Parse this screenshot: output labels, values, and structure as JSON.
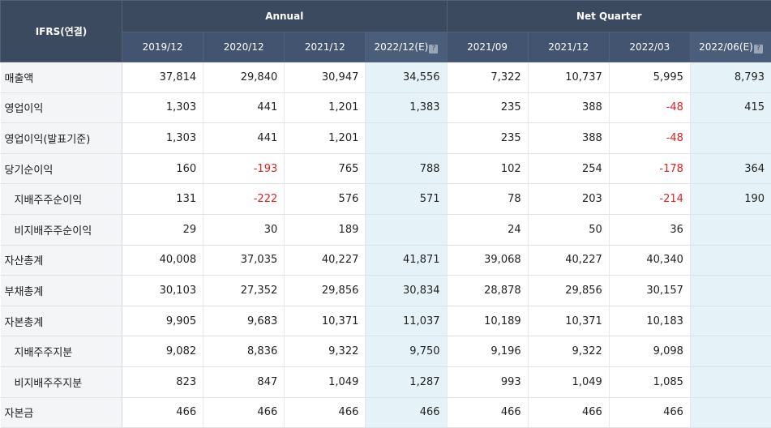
{
  "header": {
    "corner": "IFRS(연결)",
    "annual_group": "Annual",
    "quarter_group": "Net Quarter",
    "periods": [
      "2019/12",
      "2020/12",
      "2021/12",
      "2022/12(E)",
      "2021/09",
      "2021/12",
      "2022/03",
      "2022/06(E)"
    ],
    "estimate_help_icon": "question-mark-icon"
  },
  "rows": [
    {
      "label": "매출액",
      "values": [
        "37,814",
        "29,840",
        "30,947",
        "34,556",
        "7,322",
        "10,737",
        "5,995",
        "8,793"
      ]
    },
    {
      "label": "영업이익",
      "values": [
        "1,303",
        "441",
        "1,201",
        "1,383",
        "235",
        "388",
        "-48",
        "415"
      ]
    },
    {
      "label": "영업이익(발표기준)",
      "values": [
        "1,303",
        "441",
        "1,201",
        "",
        "235",
        "388",
        "-48",
        ""
      ]
    },
    {
      "label": "당기순이익",
      "values": [
        "160",
        "-193",
        "765",
        "788",
        "102",
        "254",
        "-178",
        "364"
      ]
    },
    {
      "label": "지배주주순이익",
      "values": [
        "131",
        "-222",
        "576",
        "571",
        "78",
        "203",
        "-214",
        "190"
      ]
    },
    {
      "label": "비지배주주순이익",
      "values": [
        "29",
        "30",
        "189",
        "",
        "24",
        "50",
        "36",
        ""
      ]
    },
    {
      "label": "자산총계",
      "values": [
        "40,008",
        "37,035",
        "40,227",
        "41,871",
        "39,068",
        "40,227",
        "40,340",
        ""
      ]
    },
    {
      "label": "부채총계",
      "values": [
        "30,103",
        "27,352",
        "29,856",
        "30,834",
        "28,878",
        "29,856",
        "30,157",
        ""
      ]
    },
    {
      "label": "자본총계",
      "values": [
        "9,905",
        "9,683",
        "10,371",
        "11,037",
        "10,189",
        "10,371",
        "10,183",
        ""
      ]
    },
    {
      "label": "지배주주지분",
      "values": [
        "9,082",
        "8,836",
        "9,322",
        "9,750",
        "9,196",
        "9,322",
        "9,098",
        ""
      ]
    },
    {
      "label": "비지배주주지분",
      "values": [
        "823",
        "847",
        "1,049",
        "1,287",
        "993",
        "1,049",
        "1,085",
        ""
      ]
    },
    {
      "label": "자본금",
      "values": [
        "466",
        "466",
        "466",
        "466",
        "466",
        "466",
        "466",
        ""
      ]
    }
  ],
  "colors": {
    "header_bg": "#3b4a5e",
    "estimate_bg": "#e5f3f9",
    "negative": "#e02020",
    "label_bg": "#f4f5f7"
  }
}
